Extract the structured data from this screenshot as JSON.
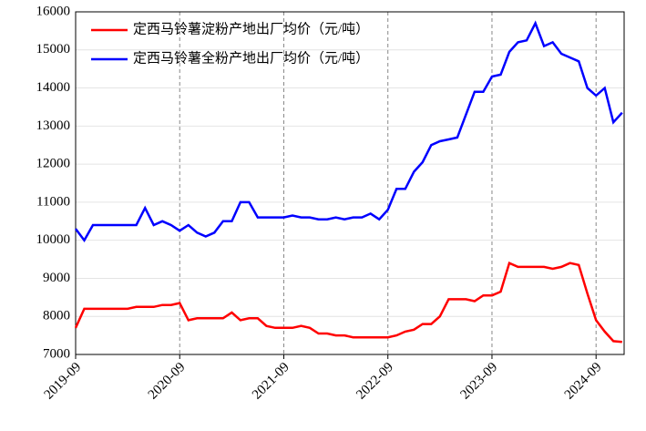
{
  "chart_data": {
    "type": "line",
    "x": [
      "2019-09",
      "2019-10",
      "2019-11",
      "2019-12",
      "2020-01",
      "2020-02",
      "2020-03",
      "2020-04",
      "2020-05",
      "2020-06",
      "2020-07",
      "2020-08",
      "2020-09",
      "2020-10",
      "2020-11",
      "2020-12",
      "2021-01",
      "2021-02",
      "2021-03",
      "2021-04",
      "2021-05",
      "2021-06",
      "2021-07",
      "2021-08",
      "2021-09",
      "2021-10",
      "2021-11",
      "2021-12",
      "2022-01",
      "2022-02",
      "2022-03",
      "2022-04",
      "2022-05",
      "2022-06",
      "2022-07",
      "2022-08",
      "2022-09",
      "2022-10",
      "2022-11",
      "2022-12",
      "2023-01",
      "2023-02",
      "2023-03",
      "2023-04",
      "2023-05",
      "2023-06",
      "2023-07",
      "2023-08",
      "2023-09",
      "2023-10",
      "2023-11",
      "2023-12",
      "2024-01",
      "2024-02",
      "2024-03",
      "2024-04",
      "2024-05",
      "2024-06",
      "2024-07",
      "2024-08",
      "2024-09",
      "2024-10",
      "2024-11",
      "2024-12"
    ],
    "series": [
      {
        "name": "定西马铃薯淀粉产地出厂均价（元/吨）",
        "color": "#ff0000",
        "values": [
          7700,
          8200,
          8200,
          8200,
          8200,
          8200,
          8200,
          8250,
          8250,
          8250,
          8300,
          8300,
          8350,
          7900,
          7950,
          7950,
          7950,
          7950,
          8100,
          7900,
          7950,
          7950,
          7750,
          7700,
          7700,
          7700,
          7750,
          7700,
          7550,
          7550,
          7500,
          7500,
          7450,
          7450,
          7450,
          7450,
          7450,
          7500,
          7600,
          7650,
          7800,
          7800,
          8000,
          8450,
          8450,
          8450,
          8400,
          8550,
          8550,
          8650,
          9400,
          9300,
          9300,
          9300,
          9300,
          9250,
          9300,
          9400,
          9350,
          8600,
          7900,
          7600,
          7350,
          7330
        ]
      },
      {
        "name": "定西马铃薯全粉产地出厂均价（元/吨）",
        "color": "#0000ff",
        "values": [
          10300,
          10000,
          10400,
          10400,
          10400,
          10400,
          10400,
          10400,
          10850,
          10400,
          10500,
          10400,
          10250,
          10400,
          10200,
          10100,
          10200,
          10500,
          10500,
          11000,
          11000,
          10600,
          10600,
          10600,
          10600,
          10650,
          10600,
          10600,
          10550,
          10550,
          10600,
          10550,
          10600,
          10600,
          10700,
          10550,
          10800,
          11350,
          11350,
          11800,
          12050,
          12500,
          12600,
          12650,
          12700,
          13300,
          13900,
          13900,
          14300,
          14350,
          14950,
          15200,
          15250,
          15700,
          15100,
          15200,
          14900,
          14800,
          14700,
          14000,
          13800,
          14000,
          13100,
          13350
        ]
      }
    ],
    "xticks": [
      "2019-09",
      "2020-09",
      "2021-09",
      "2022-09",
      "2023-09",
      "2024-09"
    ],
    "ylim": [
      7000,
      16000
    ],
    "yticks": [
      7000,
      8000,
      9000,
      10000,
      11000,
      12000,
      13000,
      14000,
      15000,
      16000
    ],
    "grid": true
  }
}
